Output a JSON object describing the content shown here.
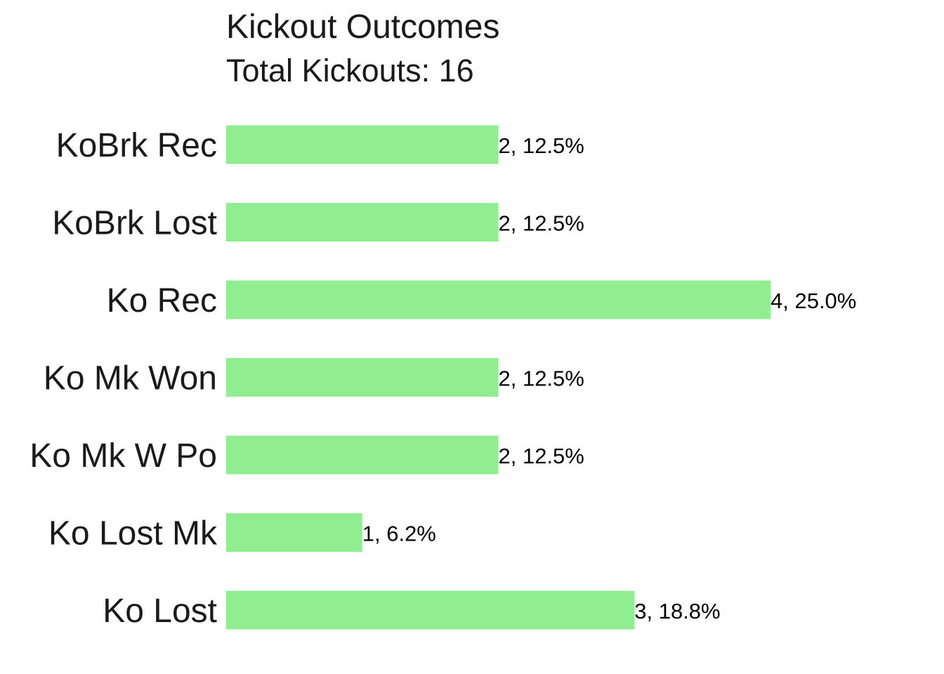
{
  "chart_data": {
    "type": "bar",
    "orientation": "horizontal",
    "title": "Kickout Outcomes",
    "subtitle": "Total Kickouts: 16",
    "categories": [
      "KoBrk Rec",
      "KoBrk Lost",
      "Ko Rec",
      "Ko Mk Won",
      "Ko Mk W Po",
      "Ko Lost Mk",
      "Ko Lost"
    ],
    "values": [
      2,
      2,
      4,
      2,
      2,
      1,
      3
    ],
    "data_labels": [
      "2, 12.5%",
      "2, 12.5%",
      "4, 25.0%",
      "2, 12.5%",
      "2, 12.5%",
      "1, 6.2%",
      "3, 18.8%"
    ],
    "xlim": [
      0,
      4
    ],
    "xlabel": "",
    "ylabel": "",
    "grid": false,
    "legend": "none",
    "colors": {
      "bar": "#90ee90",
      "text": "#1a1a1a"
    }
  }
}
